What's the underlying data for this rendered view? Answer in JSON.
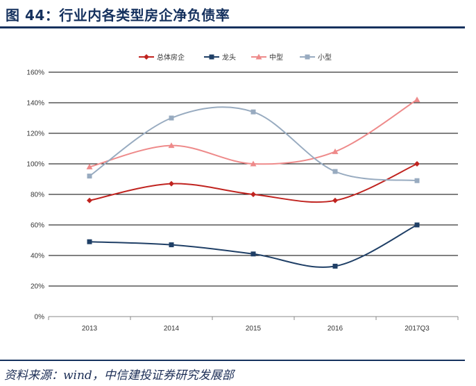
{
  "header": {
    "title": "图 44：行业内各类型房企净负债率"
  },
  "footer": {
    "source": "资料来源：wind，中信建投证券研究发展部"
  },
  "colors": {
    "rule": "#15315e"
  },
  "chart_data": {
    "type": "line",
    "smooth": true,
    "categories": [
      "2013",
      "2014",
      "2015",
      "2016",
      "2017Q3"
    ],
    "series": [
      {
        "name": "总体房企",
        "color": "#c0231f",
        "marker": "diamond",
        "values": [
          76,
          87,
          80,
          76,
          100
        ]
      },
      {
        "name": "龙头",
        "color": "#1f3f66",
        "marker": "square",
        "values": [
          49,
          47,
          41,
          33,
          60
        ]
      },
      {
        "name": "中型",
        "color": "#ee8a8a",
        "marker": "triangle",
        "values": [
          98,
          112,
          100,
          108,
          142
        ]
      },
      {
        "name": "小型",
        "color": "#98abc0",
        "marker": "square",
        "values": [
          92,
          130,
          134,
          95,
          89
        ]
      }
    ],
    "y_ticks": [
      "0%",
      "20%",
      "40%",
      "60%",
      "80%",
      "100%",
      "120%",
      "140%",
      "160%"
    ],
    "ylim": [
      0,
      160
    ],
    "y_unit": "%",
    "grid": true,
    "legend": "top"
  }
}
